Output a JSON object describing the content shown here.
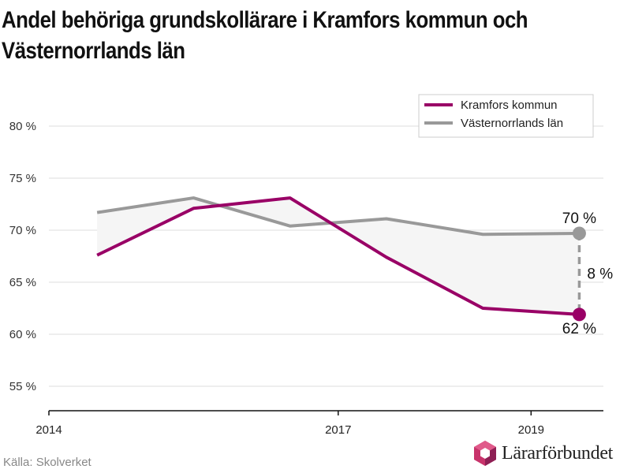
{
  "title": "Andel behöriga grundskollärare i Kramfors kommun och Västernorrlands län",
  "source": "Källa: Skolverket",
  "logo_text": "Lärarförbundet",
  "colors": {
    "kramfors": "#990066",
    "vasternorrland": "#999999",
    "band": "#f5f5f5",
    "grid": "#dddddd"
  },
  "chart_data": {
    "type": "line",
    "title": "Andel behöriga grundskollärare i Kramfors kommun och Västernorrlands län",
    "xlabel": "",
    "ylabel": "",
    "x_ticks": [
      "2014",
      "2017",
      "2019"
    ],
    "x_tick_values": [
      2014.0,
      2017.0,
      2019.0
    ],
    "xlim": [
      2014.0,
      2019.75
    ],
    "ylim": [
      52.5,
      82
    ],
    "y_ticks": [
      55,
      60,
      65,
      70,
      75,
      80
    ],
    "y_tick_labels": [
      "55 %",
      "60 %",
      "65 %",
      "70 %",
      "75 %",
      "80 %"
    ],
    "grid": true,
    "legend_position": "top-right",
    "x": [
      2014.5,
      2015.5,
      2016.5,
      2017.5,
      2018.5,
      2019.5
    ],
    "series": [
      {
        "name": "Kramfors kommun",
        "values": [
          67.6,
          72.1,
          73.1,
          67.4,
          62.5,
          61.9
        ]
      },
      {
        "name": "Västernorrlands län",
        "values": [
          71.7,
          73.1,
          70.4,
          71.1,
          69.6,
          69.7
        ]
      }
    ],
    "annotations": {
      "end_vasternorrland": "70 %",
      "end_kramfors": "62 %",
      "difference": "8 %"
    }
  }
}
